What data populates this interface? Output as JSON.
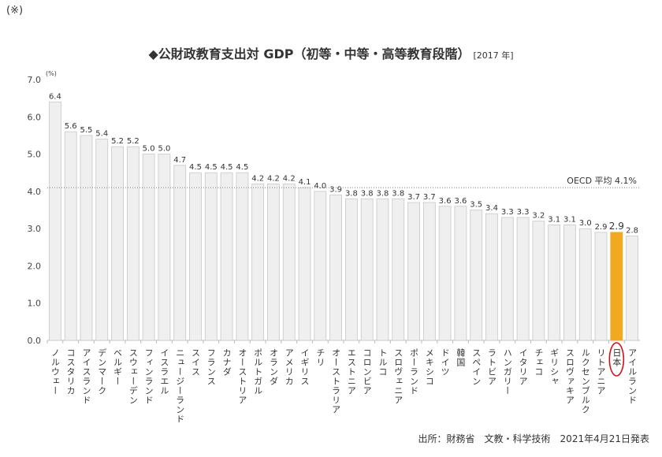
{
  "note": "(※)",
  "title": "◆公財政教育支出対 GDP（初等・中等・高等教育段階）",
  "title_year": "[2017 年]",
  "source": "出所：財務省　文教・科学技術　2021年4月21日発表",
  "chart_data": {
    "type": "bar",
    "title": "◆公財政教育支出対 GDP（初等・中等・高等教育段階）",
    "ylabel": "(%)",
    "ylim": [
      0,
      7
    ],
    "yticks": [
      "0.0",
      "1.0",
      "2.0",
      "3.0",
      "4.0",
      "5.0",
      "6.0",
      "7.0"
    ],
    "grid": false,
    "categories": [
      "ノルウェー",
      "コスタリカ",
      "アイスランド",
      "デンマーク",
      "ベルギー",
      "スウェーデン",
      "フィンランド",
      "イスラエル",
      "ニュージーランド",
      "スイス",
      "フランス",
      "カナダ",
      "オーストリア",
      "ポルトガル",
      "オランダ",
      "アメリカ",
      "イギリス",
      "チリ",
      "オーストラリア",
      "エストニア",
      "コロンビア",
      "トルコ",
      "スロヴェニア",
      "ポーランド",
      "メキシコ",
      "ドイツ",
      "韓国",
      "スペイン",
      "ラトビア",
      "ハンガリー",
      "イタリア",
      "チェコ",
      "ギリシャ",
      "スロヴァキア",
      "ルクセンブルク",
      "リトアニア",
      "日本",
      "アイルランド"
    ],
    "values": [
      6.4,
      5.6,
      5.5,
      5.4,
      5.2,
      5.2,
      5.0,
      5.0,
      4.7,
      4.5,
      4.5,
      4.5,
      4.5,
      4.2,
      4.2,
      4.2,
      4.1,
      4.0,
      3.9,
      3.8,
      3.8,
      3.8,
      3.8,
      3.7,
      3.7,
      3.6,
      3.6,
      3.5,
      3.4,
      3.3,
      3.3,
      3.2,
      3.1,
      3.1,
      3.0,
      2.9,
      2.9,
      2.8
    ],
    "highlight": "日本",
    "reference_line": {
      "label": "OECD 平均 4.1%",
      "value": 4.1
    },
    "colors": {
      "bar": "#efefef",
      "bar_border": "#c8c8c8",
      "highlight": "#f2a922",
      "circle": "#d0121b"
    }
  }
}
